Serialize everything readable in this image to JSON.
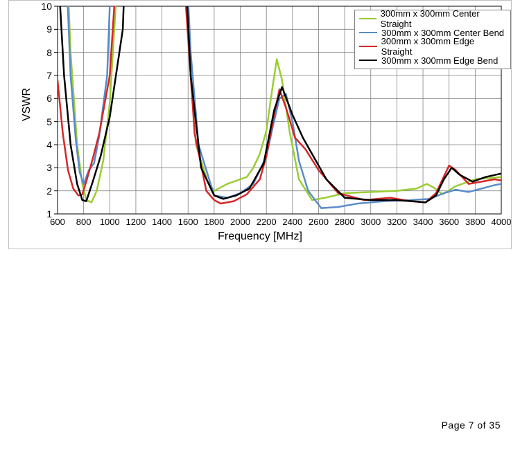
{
  "chart": {
    "type": "line",
    "xlabel": "Frequency [MHz]",
    "ylabel": "VSWR",
    "label_fontsize": 16,
    "tick_fontsize": 13,
    "background_color": "#ffffff",
    "grid_color": "#808080",
    "border_color": "#c0c0c0",
    "ylim": [
      1,
      10
    ],
    "ytick_step": 1,
    "xlim": [
      600,
      4000
    ],
    "xtick_step": 200,
    "xticks": [
      600,
      800,
      1000,
      1200,
      1400,
      1600,
      1800,
      2000,
      2200,
      2400,
      2600,
      2800,
      3000,
      3200,
      3400,
      3600,
      3800,
      4000
    ],
    "yticks": [
      1,
      2,
      3,
      4,
      5,
      6,
      7,
      8,
      9,
      10
    ],
    "line_width": 2.5,
    "series": [
      {
        "name": "300mm x 300mm Center Straight",
        "color": "#9acd32",
        "x": [
          600,
          650,
          700,
          750,
          790,
          820,
          860,
          900,
          950,
          1000,
          1100,
          1200,
          1350,
          1500,
          1580,
          1620,
          1660,
          1750,
          1800,
          1900,
          2000,
          2050,
          2100,
          2150,
          2200,
          2250,
          2280,
          2320,
          2380,
          2450,
          2550,
          2650,
          2800,
          3000,
          3200,
          3350,
          3430,
          3480,
          3550,
          3650,
          3800,
          3900,
          4000
        ],
        "y": [
          30,
          15,
          8,
          4,
          2.3,
          1.6,
          1.5,
          2.0,
          3.3,
          5.8,
          15,
          35,
          55,
          35,
          12,
          7,
          4,
          2.4,
          2.0,
          2.3,
          2.5,
          2.6,
          3.0,
          3.6,
          4.6,
          6.6,
          7.7,
          6.8,
          4.5,
          2.5,
          1.6,
          1.7,
          1.9,
          1.95,
          2.0,
          2.1,
          2.3,
          2.15,
          1.85,
          2.2,
          2.5,
          2.55,
          2.6
        ]
      },
      {
        "name": "300mm x 300mm Center Bend",
        "color": "#5b8bc9",
        "x": [
          600,
          650,
          700,
          740,
          770,
          800,
          840,
          880,
          920,
          980,
          1100,
          1250,
          1420,
          1560,
          1620,
          1680,
          1800,
          1850,
          1900,
          2000,
          2100,
          2200,
          2250,
          2300,
          2350,
          2400,
          2450,
          2520,
          2620,
          2750,
          2900,
          3100,
          3300,
          3450,
          3560,
          3650,
          3750,
          3850,
          3950,
          4000
        ],
        "y": [
          30,
          14,
          7,
          4.2,
          2.8,
          2.3,
          2.9,
          3.2,
          4.4,
          7,
          25,
          55,
          50,
          15,
          8,
          4,
          1.8,
          1.75,
          1.7,
          1.9,
          2.3,
          3.5,
          4.8,
          6.0,
          6.2,
          5.0,
          3.3,
          2.0,
          1.25,
          1.3,
          1.45,
          1.55,
          1.6,
          1.65,
          1.9,
          2.05,
          1.95,
          2.1,
          2.25,
          2.3
        ]
      },
      {
        "name": "300mm x 300mm Edge Straight",
        "color": "#d62728",
        "x": [
          600,
          640,
          680,
          720,
          760,
          790,
          820,
          870,
          920,
          1000,
          1150,
          1350,
          1480,
          1560,
          1650,
          1740,
          1800,
          1850,
          1950,
          2050,
          2150,
          2200,
          2260,
          2300,
          2350,
          2420,
          2500,
          2600,
          2750,
          2950,
          3150,
          3300,
          3420,
          3500,
          3550,
          3600,
          3650,
          3750,
          3850,
          3950,
          4000
        ],
        "y": [
          6.8,
          4.5,
          2.9,
          2.1,
          1.8,
          1.85,
          2.4,
          3.4,
          4.5,
          7,
          20,
          50,
          30,
          12,
          4.5,
          2.0,
          1.6,
          1.45,
          1.55,
          1.85,
          2.5,
          3.5,
          5.3,
          6.4,
          5.6,
          4.3,
          3.8,
          2.9,
          1.9,
          1.6,
          1.7,
          1.55,
          1.5,
          1.9,
          2.5,
          3.1,
          2.9,
          2.3,
          2.4,
          2.5,
          2.45
        ]
      },
      {
        "name": "300mm x 300mm Edge Bend",
        "color": "#000000",
        "x": [
          600,
          650,
          700,
          750,
          790,
          820,
          870,
          930,
          1000,
          1100,
          1300,
          1460,
          1550,
          1620,
          1700,
          1800,
          1870,
          1970,
          2070,
          2180,
          2260,
          2320,
          2400,
          2480,
          2560,
          2660,
          2800,
          3000,
          3180,
          3320,
          3420,
          3500,
          3560,
          3620,
          3680,
          3780,
          3880,
          3960,
          4000
        ],
        "y": [
          12,
          7,
          4.0,
          2.3,
          1.6,
          1.55,
          2.4,
          3.5,
          5.2,
          9,
          40,
          35,
          15,
          7,
          3.0,
          1.8,
          1.65,
          1.8,
          2.1,
          3.2,
          5.5,
          6.5,
          5.3,
          4.3,
          3.5,
          2.5,
          1.7,
          1.6,
          1.6,
          1.55,
          1.5,
          1.8,
          2.5,
          3.0,
          2.7,
          2.4,
          2.6,
          2.7,
          2.75
        ]
      }
    ]
  },
  "page": {
    "number": 7,
    "total": 35,
    "label": "Page 7 of 35"
  }
}
